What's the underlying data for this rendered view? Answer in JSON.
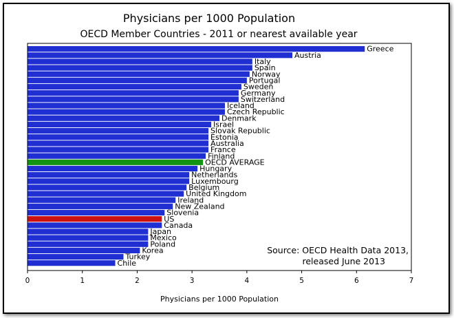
{
  "chart_data": {
    "type": "bar",
    "orientation": "horizontal",
    "title": "Physicians per 1000 Population",
    "subtitle": "OECD Member Countries - 2011 or nearest available year",
    "xlabel": "Physicians per 1000 Population",
    "xlim": [
      0,
      7
    ],
    "xticks": [
      "0",
      "1",
      "2",
      "3",
      "4",
      "5",
      "6",
      "7"
    ],
    "annotation": [
      "Source:  OECD Health Data 2013,",
      "released June 2013"
    ],
    "colors": {
      "default": "#1f2fd1",
      "OECD AVERAGE": "#129412",
      "US": "#cc1111"
    },
    "categories": [
      "Greece",
      "Austria",
      "Italy",
      "Spain",
      "Norway",
      "Portugal",
      "Sweden",
      "Germany",
      "Switzerland",
      "Iceland",
      "Czech Republic",
      "Denmark",
      "Israel",
      "Slovak Republic",
      "Estonia",
      "Australia",
      "France",
      "Finland",
      "OECD AVERAGE",
      "Hungary",
      "Netherlands",
      "Luxembourg",
      "Belgium",
      "United Kingdom",
      "Ireland",
      "New Zealand",
      "Slovenia",
      "US",
      "Canada",
      "Japan",
      "Mexico",
      "Poland",
      "Korea",
      "Turkey",
      "Chile"
    ],
    "values": [
      6.15,
      4.83,
      4.1,
      4.1,
      4.05,
      4.0,
      3.9,
      3.85,
      3.85,
      3.6,
      3.6,
      3.5,
      3.35,
      3.3,
      3.3,
      3.3,
      3.3,
      3.25,
      3.2,
      3.1,
      2.95,
      2.95,
      2.9,
      2.85,
      2.7,
      2.65,
      2.5,
      2.45,
      2.45,
      2.2,
      2.2,
      2.2,
      2.05,
      1.75,
      1.6
    ]
  }
}
